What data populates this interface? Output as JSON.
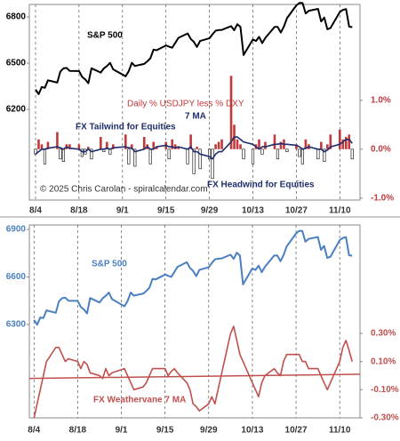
{
  "chart_data": [
    {
      "type": "combo",
      "x": [
        0,
        1,
        2,
        3,
        4,
        7,
        8,
        9,
        10,
        11,
        14,
        15,
        16,
        17,
        18,
        21,
        22,
        23,
        24,
        25,
        29,
        30,
        31,
        32,
        35,
        36,
        37,
        38,
        39,
        42,
        43,
        44,
        45,
        46,
        49,
        50,
        51,
        52,
        53,
        56,
        57,
        58,
        59,
        60,
        63,
        64,
        65,
        66,
        67,
        70,
        71,
        72,
        73,
        74,
        77,
        78,
        79,
        80,
        81,
        84,
        85,
        86,
        87,
        88,
        91,
        92,
        93,
        94,
        95,
        98,
        99,
        100,
        101,
        102
      ],
      "xlim": [
        -2,
        104.5
      ],
      "xticks": [
        {
          "value": 0,
          "label": "8/4"
        },
        {
          "value": 14,
          "label": "8/18"
        },
        {
          "value": 28,
          "label": "9/1"
        },
        {
          "value": 42,
          "label": "9/15"
        },
        {
          "value": 56,
          "label": "9/29"
        },
        {
          "value": 70,
          "label": "10/13"
        },
        {
          "value": 84,
          "label": "10/27"
        },
        {
          "value": 98,
          "label": "11/10"
        }
      ],
      "grid": true,
      "ylim": [
        5612,
        6881
      ],
      "yticks": [
        6200,
        6500,
        6800
      ],
      "y2lim": [
        -1.04,
        2.96
      ],
      "y2ticks": [
        {
          "value": 1.0,
          "label": "1.0%"
        },
        {
          "value": 0.0,
          "label": "0.0%"
        },
        {
          "value": -1.0,
          "label": "-1.0%"
        }
      ],
      "series": [
        {
          "name": "S&P 500",
          "type": "line",
          "color": "#000000",
          "axis": "y",
          "values": [
            6329,
            6299,
            6345,
            6340,
            6389,
            6374,
            6446,
            6466,
            6469,
            6450,
            6449,
            6411,
            6395,
            6370,
            6467,
            6439,
            6466,
            6481,
            6502,
            6460,
            6415,
            6448,
            6502,
            6482,
            6495,
            6512,
            6532,
            6588,
            6584,
            6615,
            6607,
            6600,
            6632,
            6664,
            6693,
            6657,
            6638,
            6605,
            6644,
            6661,
            6688,
            6711,
            6715,
            6716,
            6740,
            6714,
            6753,
            6735,
            6553,
            6654,
            6644,
            6671,
            6630,
            6664,
            6735,
            6735,
            6699,
            6738,
            6792,
            6875,
            6891,
            6890,
            6822,
            6840,
            6852,
            6771,
            6796,
            6720,
            6728,
            6832,
            6846,
            6851,
            6737,
            6734
          ]
        },
        {
          "name": "Daily % USDJPY less % DXY",
          "type": "bar",
          "color": "#c0393b",
          "negative_color": "#ffffff",
          "axis": "y2",
          "values": [
            -0.1,
            0.2,
            0.1,
            -0.3,
            0.15,
            0.35,
            -0.2,
            -0.25,
            0.1,
            0.1,
            0.1,
            -0.15,
            -0.1,
            0.05,
            -0.2,
            0.25,
            -0.05,
            0.15,
            -0.1,
            0.1,
            0.3,
            -0.3,
            0.1,
            -0.35,
            0.25,
            0.1,
            -0.3,
            0.15,
            0.05,
            0.15,
            -0.2,
            0.2,
            0.1,
            0.05,
            -0.3,
            0.3,
            -0.5,
            0.05,
            -0.4,
            -0.2,
            -0.6,
            0.1,
            0.15,
            0.2,
            1.5,
            0.5,
            0.2,
            0.1,
            -0.2,
            -0.3,
            0.1,
            0.2,
            -0.1,
            0.15,
            0.3,
            -0.2,
            0.15,
            0.2,
            -0.05,
            0.1,
            -0.15,
            -0.3,
            0.2,
            0.1,
            -0.2,
            0.15,
            -0.25,
            0.1,
            0.3,
            0.4,
            0.2,
            0.25,
            0.3,
            -0.2
          ]
        },
        {
          "name": "7 MA",
          "type": "line",
          "color": "#1f2d6e",
          "axis": "y2",
          "values": [
            -0.1,
            -0.05,
            0.0,
            0.0,
            0.02,
            0.05,
            0.03,
            0.0,
            0.05,
            0.02,
            0.0,
            -0.05,
            -0.05,
            0.0,
            -0.05,
            0.0,
            0.0,
            0.02,
            0.0,
            0.03,
            0.05,
            0.03,
            0.02,
            -0.05,
            0.0,
            0.05,
            0.0,
            0.0,
            0.05,
            0.08,
            0.05,
            0.05,
            0.03,
            0.05,
            0.0,
            0.05,
            -0.05,
            -0.05,
            -0.1,
            -0.15,
            -0.2,
            -0.1,
            -0.05,
            -0.05,
            0.15,
            0.25,
            0.25,
            0.2,
            0.15,
            0.1,
            0.05,
            0.0,
            0.05,
            0.05,
            0.1,
            0.1,
            0.12,
            0.1,
            0.1,
            0.08,
            0.05,
            0.0,
            0.02,
            0.05,
            0.0,
            0.0,
            -0.05,
            -0.02,
            0.05,
            0.1,
            0.15,
            0.2,
            0.2,
            0.12
          ]
        }
      ],
      "annotations": [
        "S&P 500",
        "Daily % USDJPY less % DXY",
        "7 MA",
        "FX Tailwind for Equities",
        "FX Headwind for Equities",
        "© 2025 Chris Carolan - spiralcalendar.com"
      ]
    },
    {
      "type": "combo",
      "x": [
        0,
        1,
        2,
        3,
        4,
        7,
        8,
        9,
        10,
        11,
        14,
        15,
        16,
        17,
        18,
        21,
        22,
        23,
        24,
        25,
        29,
        30,
        31,
        32,
        35,
        36,
        37,
        38,
        39,
        42,
        43,
        44,
        45,
        46,
        49,
        50,
        51,
        52,
        53,
        56,
        57,
        58,
        59,
        60,
        63,
        64,
        65,
        66,
        67,
        70,
        71,
        72,
        73,
        74,
        77,
        78,
        79,
        80,
        81,
        84,
        85,
        86,
        87,
        88,
        91,
        92,
        93,
        94,
        95,
        98,
        99,
        100,
        101,
        102
      ],
      "xlim": [
        -1.5,
        104.5
      ],
      "xticks": [
        {
          "value": 0,
          "label": "8/4"
        },
        {
          "value": 14,
          "label": "8/18"
        },
        {
          "value": 28,
          "label": "9/1"
        },
        {
          "value": 42,
          "label": "9/15"
        },
        {
          "value": 56,
          "label": "9/29"
        },
        {
          "value": 70,
          "label": "10/13"
        },
        {
          "value": 84,
          "label": "10/27"
        },
        {
          "value": 98,
          "label": "11/10"
        }
      ],
      "grid": true,
      "ylim": [
        5711,
        6928
      ],
      "yticks": [
        6300,
        6600,
        6900
      ],
      "y2lim": [
        -0.3,
        1.07
      ],
      "y2ticks": [
        {
          "value": 0.3,
          "label": "0.30%"
        },
        {
          "value": 0.1,
          "label": "0.10%"
        },
        {
          "value": -0.1,
          "label": "-0.10%"
        },
        {
          "value": -0.3,
          "label": "-0.30%"
        }
      ],
      "series": [
        {
          "name": "S&P 500",
          "type": "line",
          "color": "#4a7fc1",
          "axis": "y",
          "values": [
            6329,
            6299,
            6345,
            6340,
            6389,
            6374,
            6446,
            6466,
            6469,
            6450,
            6449,
            6411,
            6395,
            6370,
            6467,
            6439,
            6466,
            6481,
            6502,
            6460,
            6415,
            6448,
            6502,
            6482,
            6495,
            6512,
            6532,
            6588,
            6584,
            6615,
            6607,
            6600,
            6632,
            6664,
            6693,
            6657,
            6638,
            6605,
            6644,
            6661,
            6688,
            6711,
            6715,
            6716,
            6740,
            6714,
            6753,
            6735,
            6553,
            6654,
            6644,
            6671,
            6630,
            6664,
            6735,
            6735,
            6699,
            6738,
            6792,
            6875,
            6891,
            6890,
            6822,
            6840,
            6852,
            6771,
            6796,
            6720,
            6728,
            6832,
            6846,
            6851,
            6737,
            6734
          ]
        },
        {
          "name": "FX Weathervane 7 MA",
          "type": "line",
          "color": "#c0504d",
          "axis": "y2",
          "values": [
            -0.3,
            -0.2,
            -0.1,
            0.0,
            0.1,
            0.2,
            0.2,
            0.15,
            0.1,
            0.12,
            0.1,
            0.05,
            0.1,
            0.08,
            0.02,
            0.0,
            -0.02,
            0.05,
            0.0,
            0.02,
            0.05,
            0.0,
            -0.05,
            -0.1,
            -0.08,
            -0.05,
            0.0,
            0.05,
            0.05,
            0.05,
            0.0,
            0.03,
            0.05,
            0.02,
            -0.05,
            -0.1,
            -0.2,
            -0.22,
            -0.25,
            -0.2,
            -0.15,
            -0.2,
            -0.1,
            0.0,
            0.3,
            0.35,
            0.25,
            0.15,
            0.1,
            -0.05,
            -0.1,
            -0.15,
            -0.05,
            0.0,
            0.05,
            0.02,
            0.0,
            0.1,
            0.15,
            0.15,
            0.15,
            0.1,
            0.1,
            0.05,
            0.05,
            0.0,
            -0.05,
            -0.1,
            -0.05,
            0.1,
            0.2,
            0.25,
            0.18,
            0.1
          ]
        }
      ],
      "trend_line": {
        "color": "#c0504d",
        "values": [
          -0.02,
          0.01
        ]
      }
    }
  ]
}
